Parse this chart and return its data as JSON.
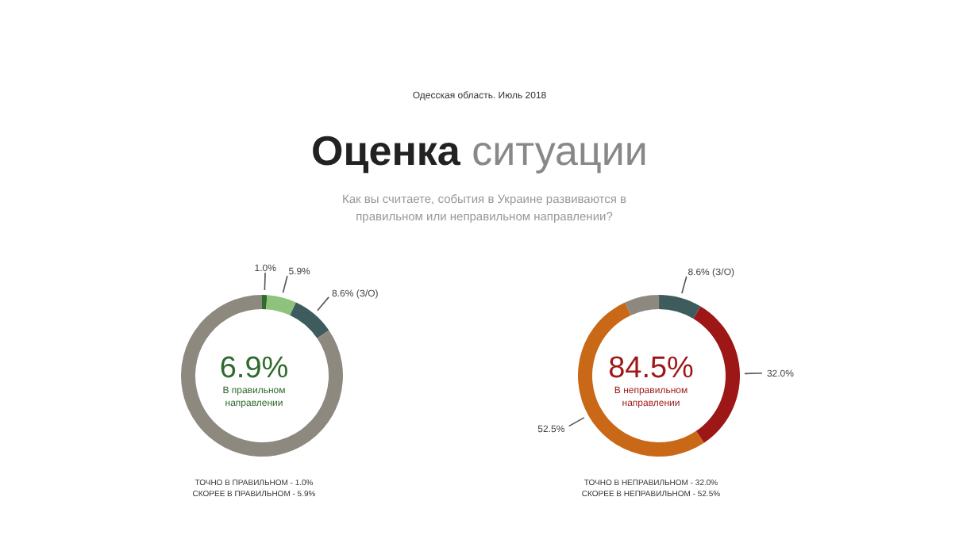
{
  "chart_data": [
    {
      "type": "donut",
      "title": "Оценка ситуации",
      "subtitle": "Как вы считаете, события в Украине развиваются в правильном или неправильном направлении?",
      "categories": [
        null,
        null,
        null,
        null
      ],
      "values": [
        1.0,
        5.9,
        8.6,
        84.5
      ],
      "colors": [
        "#2f6b2c",
        "#8fc27c",
        "#3e5b5d",
        "#8e897f"
      ],
      "value_labels": [
        "1.0%",
        "5.9%",
        "8.6% (З/О)",
        null
      ],
      "annotations": [
        "Одесская область. Июль 2018",
        "6.9%",
        "В правильном направлении",
        "ТОЧНО В ПРАВИЛЬНОМ - 1.0%",
        "СКОРЕЕ В ПРАВИЛЬНОМ - 5.9%"
      ]
    },
    {
      "type": "donut",
      "categories": [
        null,
        null,
        null,
        null
      ],
      "values": [
        32.0,
        52.5,
        6.9,
        8.6
      ],
      "colors": [
        "#9e1717",
        "#c96816",
        "#8e897f",
        "#3e5b5d"
      ],
      "value_labels": [
        "32.0%",
        "52.5%",
        null,
        "8.6% (З/О)"
      ],
      "annotations": [
        "84.5%",
        "В неправильном направлении",
        "ТОЧНО В НЕПРАВИЛЬНОМ - 32.0%",
        "СКОРЕЕ В НЕПРАВИЛЬНОМ - 52.5%"
      ]
    }
  ]
}
